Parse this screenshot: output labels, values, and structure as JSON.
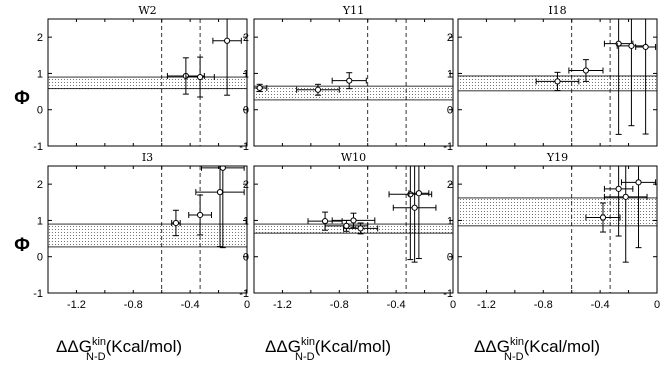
{
  "chart_data": [
    {
      "type": "scatter",
      "title": "W2",
      "xlim": [
        -1.4,
        0
      ],
      "ylim": [
        -1,
        2.5
      ],
      "band": [
        0.58,
        0.9
      ],
      "vlines": [
        -0.6,
        -0.33
      ],
      "points": [
        {
          "x": -0.43,
          "y": 0.93,
          "xerr": 0.13,
          "yerr": 0.5
        },
        {
          "x": -0.33,
          "y": 0.9,
          "xerr": 0.1,
          "yerr": 0.55
        },
        {
          "x": -0.14,
          "y": 1.9,
          "xerr": 0.1,
          "yerr": 1.5
        }
      ]
    },
    {
      "type": "scatter",
      "title": "Y11",
      "xlim": [
        -1.4,
        0
      ],
      "ylim": [
        -1,
        2.5
      ],
      "band": [
        0.27,
        0.65
      ],
      "vlines": [
        -0.6,
        -0.33
      ],
      "points": [
        {
          "x": -1.36,
          "y": 0.6,
          "xerr": 0.05,
          "yerr": 0.1
        },
        {
          "x": -0.95,
          "y": 0.55,
          "xerr": 0.15,
          "yerr": 0.15
        },
        {
          "x": -0.73,
          "y": 0.8,
          "xerr": 0.12,
          "yerr": 0.22
        }
      ]
    },
    {
      "type": "scatter",
      "title": "I18",
      "xlim": [
        -1.4,
        0
      ],
      "ylim": [
        -1,
        2.5
      ],
      "band": [
        0.52,
        0.93
      ],
      "vlines": [
        -0.6,
        -0.33
      ],
      "points": [
        {
          "x": -0.7,
          "y": 0.78,
          "xerr": 0.15,
          "yerr": 0.25
        },
        {
          "x": -0.5,
          "y": 1.08,
          "xerr": 0.12,
          "yerr": 0.3
        },
        {
          "x": -0.27,
          "y": 1.82,
          "xerr": 0.1,
          "yerr": 2.5
        },
        {
          "x": -0.18,
          "y": 1.76,
          "xerr": 0.1,
          "yerr": 2.2
        },
        {
          "x": -0.08,
          "y": 1.73,
          "xerr": 0.07,
          "yerr": 2.4
        }
      ]
    },
    {
      "type": "scatter",
      "title": "I3",
      "xlim": [
        -1.4,
        0
      ],
      "ylim": [
        -1,
        2.5
      ],
      "band": [
        0.27,
        0.9
      ],
      "vlines": [
        -0.6,
        -0.33
      ],
      "points": [
        {
          "x": -0.5,
          "y": 0.93,
          "xerr": 0.03,
          "yerr": 0.35
        },
        {
          "x": -0.33,
          "y": 1.15,
          "xerr": 0.08,
          "yerr": 0.55
        },
        {
          "x": -0.19,
          "y": 1.78,
          "xerr": 0.17,
          "yerr": 1.5
        },
        {
          "x": -0.17,
          "y": 2.45,
          "xerr": 0.15,
          "yerr": 2.2
        }
      ]
    },
    {
      "type": "scatter",
      "title": "W10",
      "xlim": [
        -1.4,
        0
      ],
      "ylim": [
        -1,
        2.5
      ],
      "band": [
        0.65,
        0.9
      ],
      "vlines": [
        -0.6,
        -0.33
      ],
      "points": [
        {
          "x": -0.9,
          "y": 0.98,
          "xerr": 0.12,
          "yerr": 0.25
        },
        {
          "x": -0.75,
          "y": 0.85,
          "xerr": 0.15,
          "yerr": 0.15
        },
        {
          "x": -0.7,
          "y": 1.0,
          "xerr": 0.15,
          "yerr": 0.2
        },
        {
          "x": -0.65,
          "y": 0.78,
          "xerr": 0.12,
          "yerr": 0.15
        },
        {
          "x": -0.3,
          "y": 1.72,
          "xerr": 0.15,
          "yerr": 1.8
        },
        {
          "x": -0.27,
          "y": 1.35,
          "xerr": 0.15,
          "yerr": 1.5
        },
        {
          "x": -0.24,
          "y": 1.75,
          "xerr": 0.07,
          "yerr": 1.8
        }
      ]
    },
    {
      "type": "scatter",
      "title": "Y19",
      "xlim": [
        -1.4,
        0
      ],
      "ylim": [
        -1,
        2.5
      ],
      "band": [
        0.85,
        1.62
      ],
      "vlines": [
        -0.6,
        -0.33
      ],
      "points": [
        {
          "x": -0.38,
          "y": 1.08,
          "xerr": 0.12,
          "yerr": 0.4
        },
        {
          "x": -0.27,
          "y": 1.87,
          "xerr": 0.1,
          "yerr": 1.3
        },
        {
          "x": -0.22,
          "y": 1.65,
          "xerr": 0.15,
          "yerr": 1.8
        },
        {
          "x": -0.13,
          "y": 2.05,
          "xerr": 0.12,
          "yerr": 1.8
        }
      ]
    }
  ],
  "axes": {
    "ylabel": "Φ",
    "xlabel_main": "ΔΔG",
    "xlabel_sup": "kin",
    "xlabel_sub": "N-D",
    "xlabel_unit": "(Kcal/mol)",
    "yticks": [
      -1,
      0,
      1,
      2
    ],
    "xticks": [
      -1.2,
      -0.8,
      -0.4,
      0
    ],
    "ytick_labels": [
      "-1",
      "0",
      "1",
      "2"
    ],
    "xtick_labels": [
      "-1.2",
      "-0.8",
      "-0.4",
      "0"
    ]
  }
}
